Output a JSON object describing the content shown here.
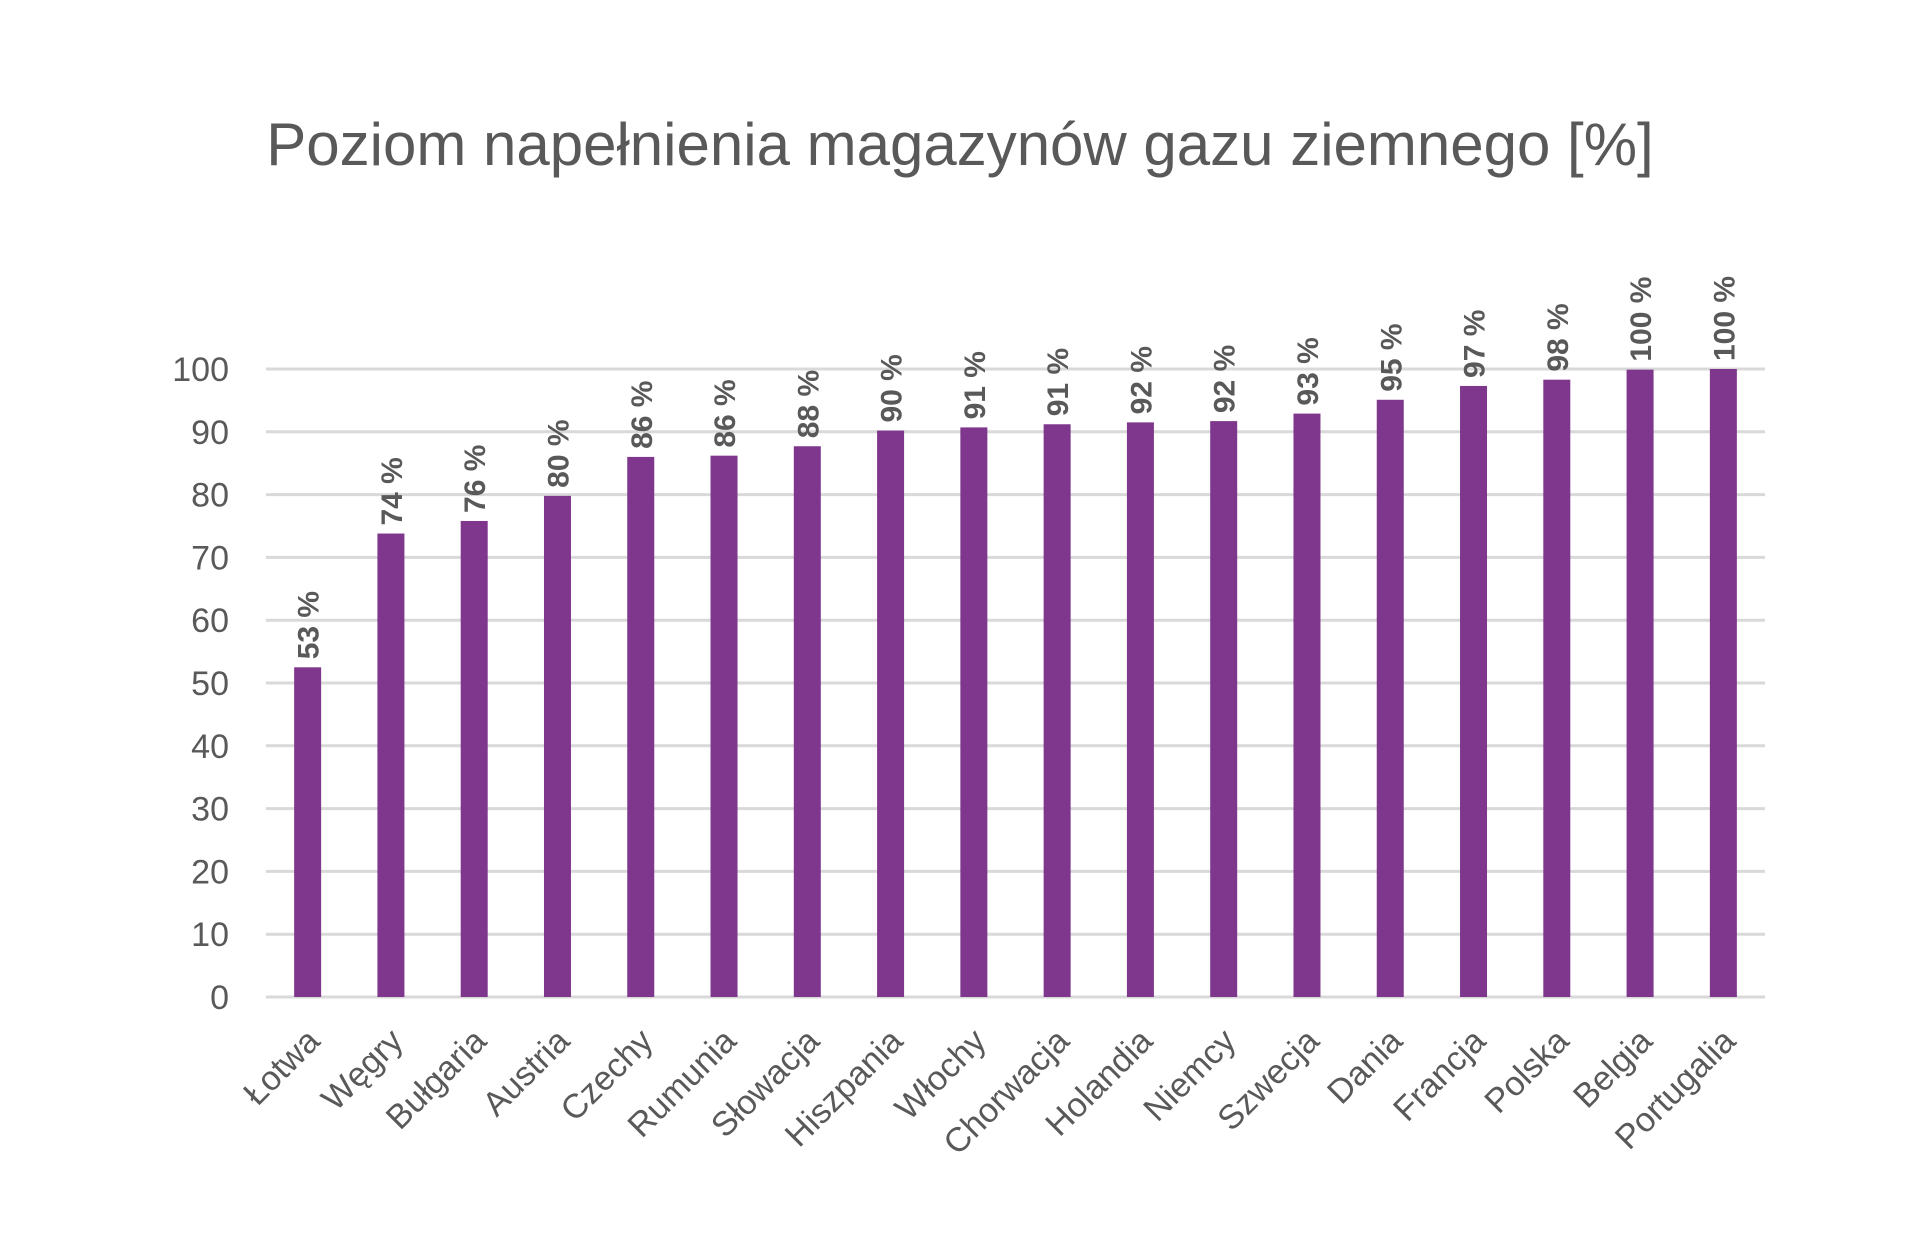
{
  "chart_data": {
    "type": "bar",
    "title": "Poziom napełnienia magazynów gazu ziemnego [%]",
    "xlabel": "",
    "ylabel": "",
    "ylim": [
      0,
      100
    ],
    "yticks": [
      "0",
      "10",
      "20",
      "30",
      "40",
      "50",
      "60",
      "70",
      "80",
      "90",
      "100"
    ],
    "grid": true,
    "bar_color": "#7F378D",
    "categories": [
      "Łotwa",
      "Węgry",
      "Bułgaria",
      "Austria",
      "Czechy",
      "Rumunia",
      "Słowacja",
      "Hiszpania",
      "Włochy",
      "Chorwacja",
      "Holandia",
      "Niemcy",
      "Szwecja",
      "Dania",
      "Francja",
      "Polska",
      "Belgia",
      "Portugalia"
    ],
    "values": [
      52.5,
      73.8,
      75.8,
      79.8,
      86.0,
      86.2,
      87.7,
      90.2,
      90.7,
      91.2,
      91.5,
      91.7,
      92.9,
      95.1,
      97.3,
      98.3,
      99.9,
      100
    ],
    "data_labels": [
      "53 %",
      "74 %",
      "76 %",
      "80 %",
      "86 %",
      "86 %",
      "88 %",
      "90 %",
      "91 %",
      "91 %",
      "92 %",
      "92 %",
      "93 %",
      "95 %",
      "97 %",
      "98 %",
      "100 %",
      "100 %"
    ]
  }
}
